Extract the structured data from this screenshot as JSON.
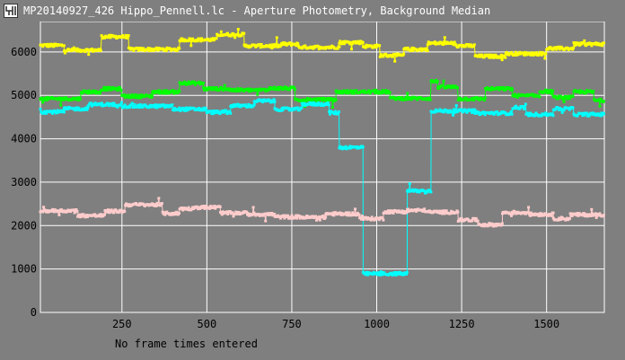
{
  "window": {
    "title": "MP20140927_426 Hippo_Pennell.lc - Aperture Photometry, Background Median",
    "icon": "light-curve-icon"
  },
  "footer": {
    "status": "No frame times entered"
  },
  "colors": {
    "background": "#7f7f7f",
    "grid": "#ffffff",
    "yellow": "#ffff00",
    "green": "#00ff00",
    "cyan": "#00ffff",
    "pink": "#ffcccc"
  },
  "chart_data": {
    "type": "line",
    "xlim": [
      10,
      1670
    ],
    "ylim": [
      0,
      6700
    ],
    "x_ticks": [
      250,
      500,
      750,
      1000,
      1250,
      1500
    ],
    "y_ticks": [
      0,
      1000,
      2000,
      3000,
      4000,
      5000,
      6000
    ],
    "grid": true,
    "series": [
      {
        "color": "#ffff00",
        "segments": [
          [
            10,
            80,
            6150
          ],
          [
            80,
            190,
            6040
          ],
          [
            190,
            270,
            6350
          ],
          [
            270,
            420,
            6060
          ],
          [
            420,
            530,
            6280
          ],
          [
            530,
            610,
            6400
          ],
          [
            610,
            720,
            6140
          ],
          [
            720,
            770,
            6180
          ],
          [
            770,
            890,
            6110
          ],
          [
            890,
            960,
            6220
          ],
          [
            960,
            1010,
            6130
          ],
          [
            1010,
            1080,
            5920
          ],
          [
            1080,
            1150,
            6060
          ],
          [
            1150,
            1230,
            6200
          ],
          [
            1230,
            1290,
            6140
          ],
          [
            1290,
            1380,
            5900
          ],
          [
            1380,
            1500,
            5960
          ],
          [
            1500,
            1580,
            6080
          ],
          [
            1580,
            1670,
            6180
          ]
        ]
      },
      {
        "color": "#00ff00",
        "segments": [
          [
            10,
            130,
            4920
          ],
          [
            130,
            190,
            5080
          ],
          [
            190,
            250,
            5150
          ],
          [
            250,
            340,
            4980
          ],
          [
            340,
            420,
            5080
          ],
          [
            420,
            490,
            5280
          ],
          [
            490,
            570,
            5150
          ],
          [
            570,
            680,
            5120
          ],
          [
            680,
            760,
            5160
          ],
          [
            760,
            880,
            4900
          ],
          [
            880,
            1040,
            5080
          ],
          [
            1040,
            1160,
            4930
          ],
          [
            1160,
            1180,
            5320
          ],
          [
            1180,
            1240,
            5190
          ],
          [
            1240,
            1320,
            4920
          ],
          [
            1320,
            1400,
            5150
          ],
          [
            1400,
            1480,
            4990
          ],
          [
            1480,
            1520,
            5090
          ],
          [
            1520,
            1580,
            4950
          ],
          [
            1580,
            1640,
            5080
          ],
          [
            1640,
            1670,
            4880
          ]
        ]
      },
      {
        "color": "#00ffff",
        "segments": [
          [
            10,
            80,
            4620
          ],
          [
            80,
            150,
            4690
          ],
          [
            150,
            230,
            4790
          ],
          [
            230,
            400,
            4750
          ],
          [
            400,
            500,
            4680
          ],
          [
            500,
            570,
            4610
          ],
          [
            570,
            640,
            4760
          ],
          [
            640,
            700,
            4870
          ],
          [
            700,
            780,
            4680
          ],
          [
            780,
            860,
            4800
          ],
          [
            860,
            890,
            4600
          ],
          [
            890,
            960,
            3800
          ],
          [
            960,
            1090,
            890
          ],
          [
            1090,
            1160,
            2800
          ],
          [
            1160,
            1290,
            4640
          ],
          [
            1290,
            1400,
            4590
          ],
          [
            1400,
            1440,
            4720
          ],
          [
            1440,
            1520,
            4560
          ],
          [
            1520,
            1580,
            4690
          ],
          [
            1580,
            1670,
            4560
          ]
        ]
      },
      {
        "color": "#ffcccc",
        "segments": [
          [
            10,
            120,
            2340
          ],
          [
            120,
            200,
            2230
          ],
          [
            200,
            260,
            2330
          ],
          [
            260,
            370,
            2480
          ],
          [
            370,
            420,
            2280
          ],
          [
            420,
            460,
            2390
          ],
          [
            460,
            540,
            2420
          ],
          [
            540,
            620,
            2290
          ],
          [
            620,
            700,
            2260
          ],
          [
            700,
            780,
            2200
          ],
          [
            780,
            850,
            2190
          ],
          [
            850,
            950,
            2270
          ],
          [
            950,
            1020,
            2160
          ],
          [
            1020,
            1090,
            2320
          ],
          [
            1090,
            1150,
            2350
          ],
          [
            1150,
            1240,
            2310
          ],
          [
            1240,
            1300,
            2130
          ],
          [
            1300,
            1370,
            2020
          ],
          [
            1370,
            1450,
            2300
          ],
          [
            1450,
            1520,
            2260
          ],
          [
            1520,
            1570,
            2160
          ],
          [
            1570,
            1670,
            2250
          ]
        ]
      }
    ]
  }
}
